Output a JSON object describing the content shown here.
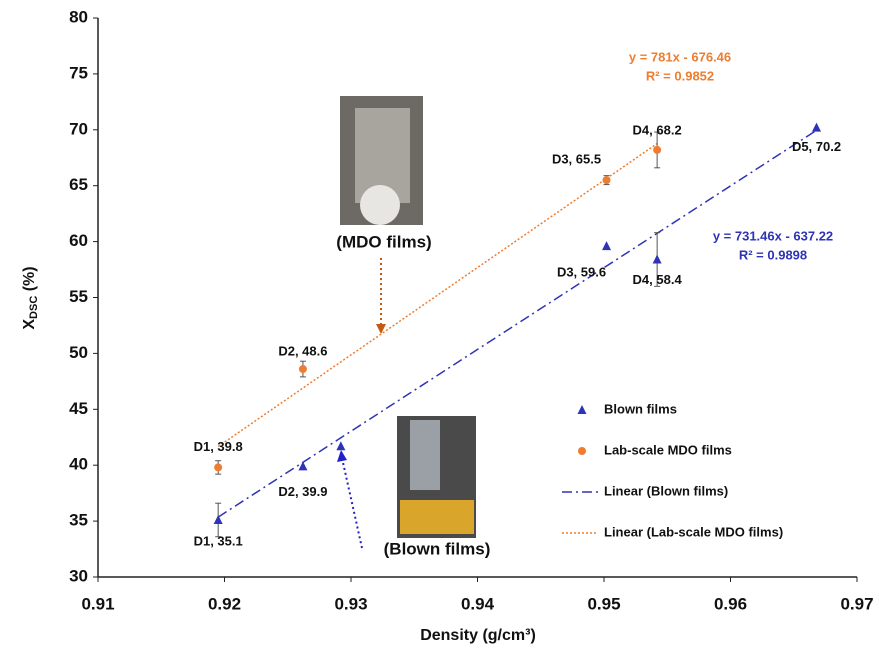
{
  "chart_data": {
    "type": "scatter",
    "xlabel": "Density (g/cm³)",
    "ylabel": {
      "main": "X",
      "sub": "DSC",
      "rest": " (%)"
    },
    "xlim": [
      0.91,
      0.97
    ],
    "xticks": [
      0.91,
      0.92,
      0.93,
      0.94,
      0.95,
      0.96,
      0.97
    ],
    "ylim": [
      30,
      80
    ],
    "yticks": [
      30,
      35,
      40,
      45,
      50,
      55,
      60,
      65,
      70,
      75,
      80
    ],
    "grid": false,
    "legend": "lower right",
    "series": [
      {
        "name": "Blown films",
        "color": "#2e34b5",
        "marker": "triangle",
        "x": [
          0.9195,
          0.9262,
          0.9292,
          0.9502,
          0.9542,
          0.9668
        ],
        "values": [
          35.1,
          39.9,
          41.7,
          59.6,
          58.4,
          70.2
        ],
        "errors": [
          1.5,
          null,
          null,
          null,
          2.4,
          null
        ],
        "value_labels": [
          "D1, 35.1",
          "D2, 39.9",
          null,
          "D3, 59.6",
          "D4, 58.4",
          "D5, 70.2"
        ],
        "trendline": {
          "name": "Linear (Blown films)",
          "slope": 731.46,
          "intercept": -637.22,
          "equation": "y = 731.46x - 637.22",
          "r2": "R² = 0.9898",
          "style": "dashdot"
        }
      },
      {
        "name": "Lab-scale MDO films",
        "color": "#ed7d31",
        "marker": "circle",
        "x": [
          0.9195,
          0.9262,
          0.9502,
          0.9542
        ],
        "values": [
          39.8,
          48.6,
          65.5,
          68.2
        ],
        "errors": [
          0.6,
          0.7,
          0.4,
          1.6
        ],
        "value_labels": [
          "D1, 39.8",
          "D2, 48.6",
          "D3, 65.5",
          "D4, 68.2"
        ],
        "trendline": {
          "name": "Linear (Lab-scale MDO films)",
          "slope": 781,
          "intercept": -676.46,
          "equation": "y = 781x - 676.46",
          "r2": "R² = 0.9852",
          "style": "dotted"
        }
      }
    ],
    "annotations": [
      {
        "text": "(MDO films)",
        "color": "#c55a11"
      },
      {
        "text": "(Blown films)",
        "color": "#2020c8"
      }
    ]
  }
}
